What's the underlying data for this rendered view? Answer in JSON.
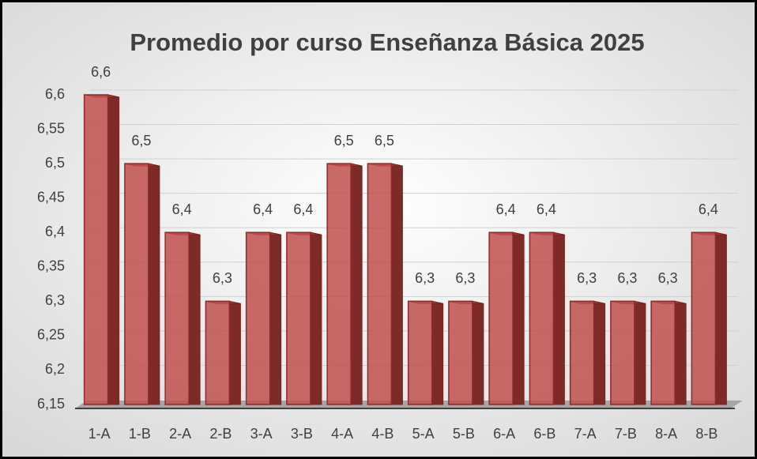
{
  "chart_data": {
    "type": "bar",
    "title": "Promedio por curso Enseñanza Básica 2025",
    "categories": [
      "1-A",
      "1-B",
      "2-A",
      "2-B",
      "3-A",
      "3-B",
      "4-A",
      "4-B",
      "5-A",
      "5-B",
      "6-A",
      "6-B",
      "7-A",
      "7-B",
      "8-A",
      "8-B"
    ],
    "values": [
      6.6,
      6.5,
      6.4,
      6.3,
      6.4,
      6.4,
      6.5,
      6.5,
      6.3,
      6.3,
      6.4,
      6.4,
      6.3,
      6.3,
      6.3,
      6.4
    ],
    "value_labels": [
      "6,6",
      "6,5",
      "6,4",
      "6,3",
      "6,4",
      "6,4",
      "6,5",
      "6,5",
      "6,3",
      "6,3",
      "6,4",
      "6,4",
      "6,3",
      "6,3",
      "6,3",
      "6,4"
    ],
    "color": "#c0504d",
    "ylim": [
      6.15,
      6.6
    ],
    "yticks": [
      {
        "value": 6.15,
        "label": "6,15"
      },
      {
        "value": 6.2,
        "label": "6,2"
      },
      {
        "value": 6.25,
        "label": "6,25"
      },
      {
        "value": 6.3,
        "label": "6,3"
      },
      {
        "value": 6.35,
        "label": "6,35"
      },
      {
        "value": 6.4,
        "label": "6,4"
      },
      {
        "value": 6.45,
        "label": "6,45"
      },
      {
        "value": 6.5,
        "label": "6,5"
      },
      {
        "value": 6.55,
        "label": "6,55"
      },
      {
        "value": 6.6,
        "label": "6,6"
      }
    ],
    "grid": true
  }
}
